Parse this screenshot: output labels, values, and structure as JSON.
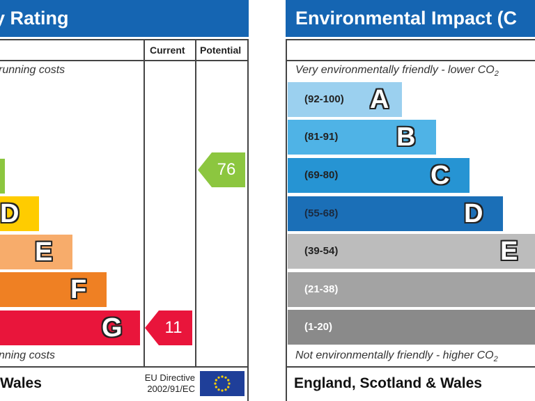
{
  "energy": {
    "title": "y Rating",
    "col_current": "Current",
    "col_potential": "Potential",
    "top_caption": "running costs",
    "bottom_caption": "nning costs",
    "bands": [
      {
        "letter": "",
        "color": "#8cc63f"
      },
      {
        "letter": "D",
        "color": "#ffcc00"
      },
      {
        "letter": "E",
        "color": "#f7ac6b"
      },
      {
        "letter": "F",
        "color": "#ef8023"
      },
      {
        "letter": "G",
        "color": "#e9153b"
      }
    ],
    "current": {
      "value": "11",
      "color": "#e9153b",
      "band": "G"
    },
    "potential": {
      "value": "76",
      "color": "#8cc63f",
      "band": "C"
    },
    "footer": "Wales",
    "directive_line1": "EU Directive",
    "directive_line2": "2002/91/EC"
  },
  "environmental": {
    "title": "Environmental Impact (C",
    "top_caption": "Very environmentally friendly - lower CO",
    "top_caption_sub": "2",
    "bottom_caption": "Not environmentally friendly - higher CO",
    "bottom_caption_sub": "2",
    "bands": [
      {
        "range": "(92-100)",
        "letter": "A",
        "color": "#9bd0ef"
      },
      {
        "range": "(81-91)",
        "letter": "B",
        "color": "#4fb3e6"
      },
      {
        "range": "(69-80)",
        "letter": "C",
        "color": "#2694d3"
      },
      {
        "range": "(55-68)",
        "letter": "D",
        "color": "#1b6fb7"
      },
      {
        "range": "(39-54)",
        "letter": "E",
        "color": "#bcbcbc"
      },
      {
        "range": "(21-38)",
        "letter": "",
        "color": "#a3a3a3"
      },
      {
        "range": "(1-20)",
        "letter": "",
        "color": "#8a8a8a"
      }
    ],
    "footer": "England, Scotland & Wales"
  }
}
